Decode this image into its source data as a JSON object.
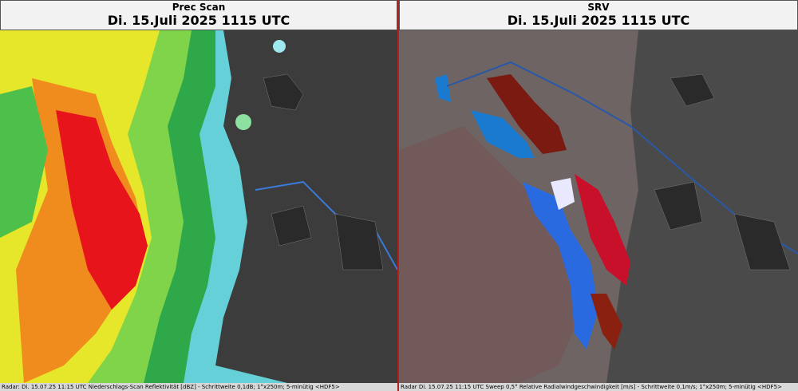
{
  "panels": [
    {
      "title": "Prec Scan",
      "timestamp": "Di. 15.Juli 2025 1115 UTC",
      "footer": "Radar: Di. 15.07.25 11:15 UTC  Niederschlags-Scan Reflektivität [dBZ] - Schrittweite 0,1dB; 1°x250m; 5-minütig <HDF5>"
    },
    {
      "title": "SRV",
      "timestamp": "Di. 15.Juli 2025 1115 UTC",
      "footer": "Radar  Di. 15.07.25 11:15 UTC  Sweep 0,5° Relative Radialwindgeschwindigkeit [m/s] - Schrittweite 0,1m/s; 1°x250m; 5-minütig <HDF5>"
    }
  ]
}
